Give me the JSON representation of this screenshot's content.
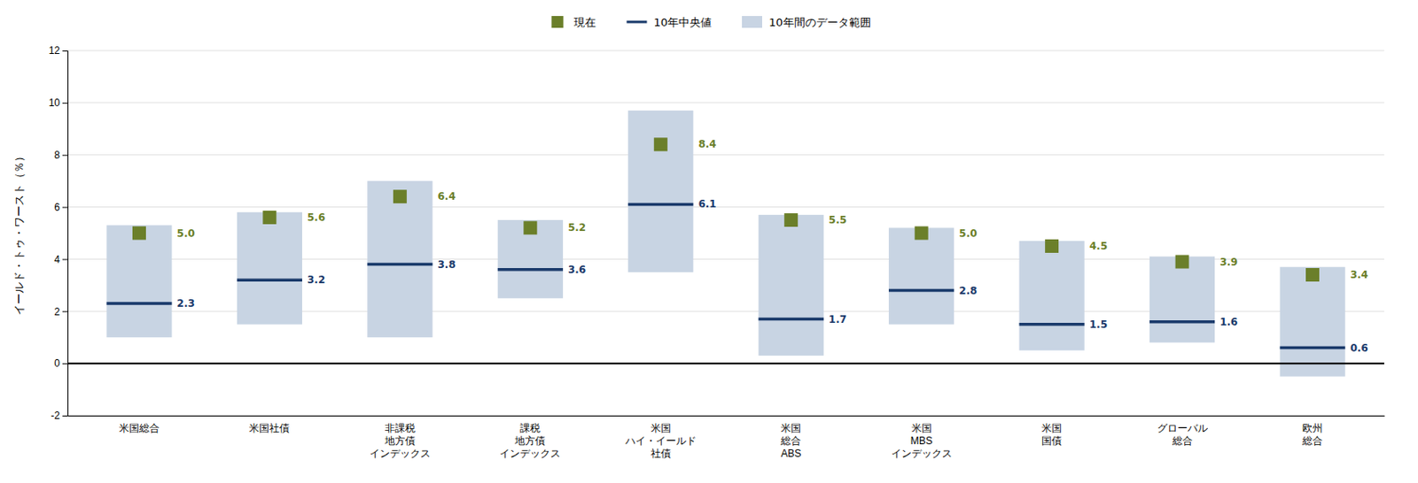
{
  "chart_data": {
    "type": "bar",
    "categories": [
      "米国総合",
      "米国社債",
      "非課税\n地方債\nインデックス",
      "課税\n地方債\nインデックス",
      "米国\nハイ・イールド\n社債",
      "米国\n総合\nABS",
      "米国\nMBS\nインデックス",
      "米国\n国債",
      "グローバル\n総合",
      "欧州\n総合"
    ],
    "series": [
      {
        "name": "現在",
        "type": "scatter",
        "marker": "square",
        "color": "#6b7f2a",
        "data_labels": true,
        "values": [
          5.0,
          5.6,
          6.4,
          5.2,
          8.4,
          5.5,
          5.0,
          4.5,
          3.9,
          3.4
        ],
        "value_labels": [
          "5.0",
          "5.6",
          "6.4",
          "5.2",
          "8.4",
          "5.5",
          "5.0",
          "4.5",
          "3.9",
          "3.4"
        ]
      },
      {
        "name": "10年中央値",
        "type": "scatter",
        "marker": "dash",
        "color": "#1a3a6b",
        "data_labels": true,
        "values": [
          2.3,
          3.2,
          3.8,
          3.6,
          6.1,
          1.7,
          2.8,
          1.5,
          1.6,
          0.6
        ]
      },
      {
        "name": "10年間のデータ範囲",
        "type": "bar",
        "color": "#c8d4e3",
        "data_labels": false,
        "low": [
          1.0,
          1.5,
          1.0,
          2.5,
          3.5,
          0.3,
          1.5,
          0.5,
          0.8,
          -0.5
        ],
        "high": [
          5.3,
          5.8,
          7.0,
          5.5,
          9.7,
          5.7,
          5.2,
          4.7,
          4.1,
          3.7
        ]
      }
    ],
    "ylabel": "イールド・トゥ・ワースト（％）",
    "ylim": [
      -2,
      12
    ],
    "yticks": [
      -2,
      0,
      2,
      4,
      6,
      8,
      10,
      12
    ],
    "grid": true,
    "legend": "top"
  }
}
